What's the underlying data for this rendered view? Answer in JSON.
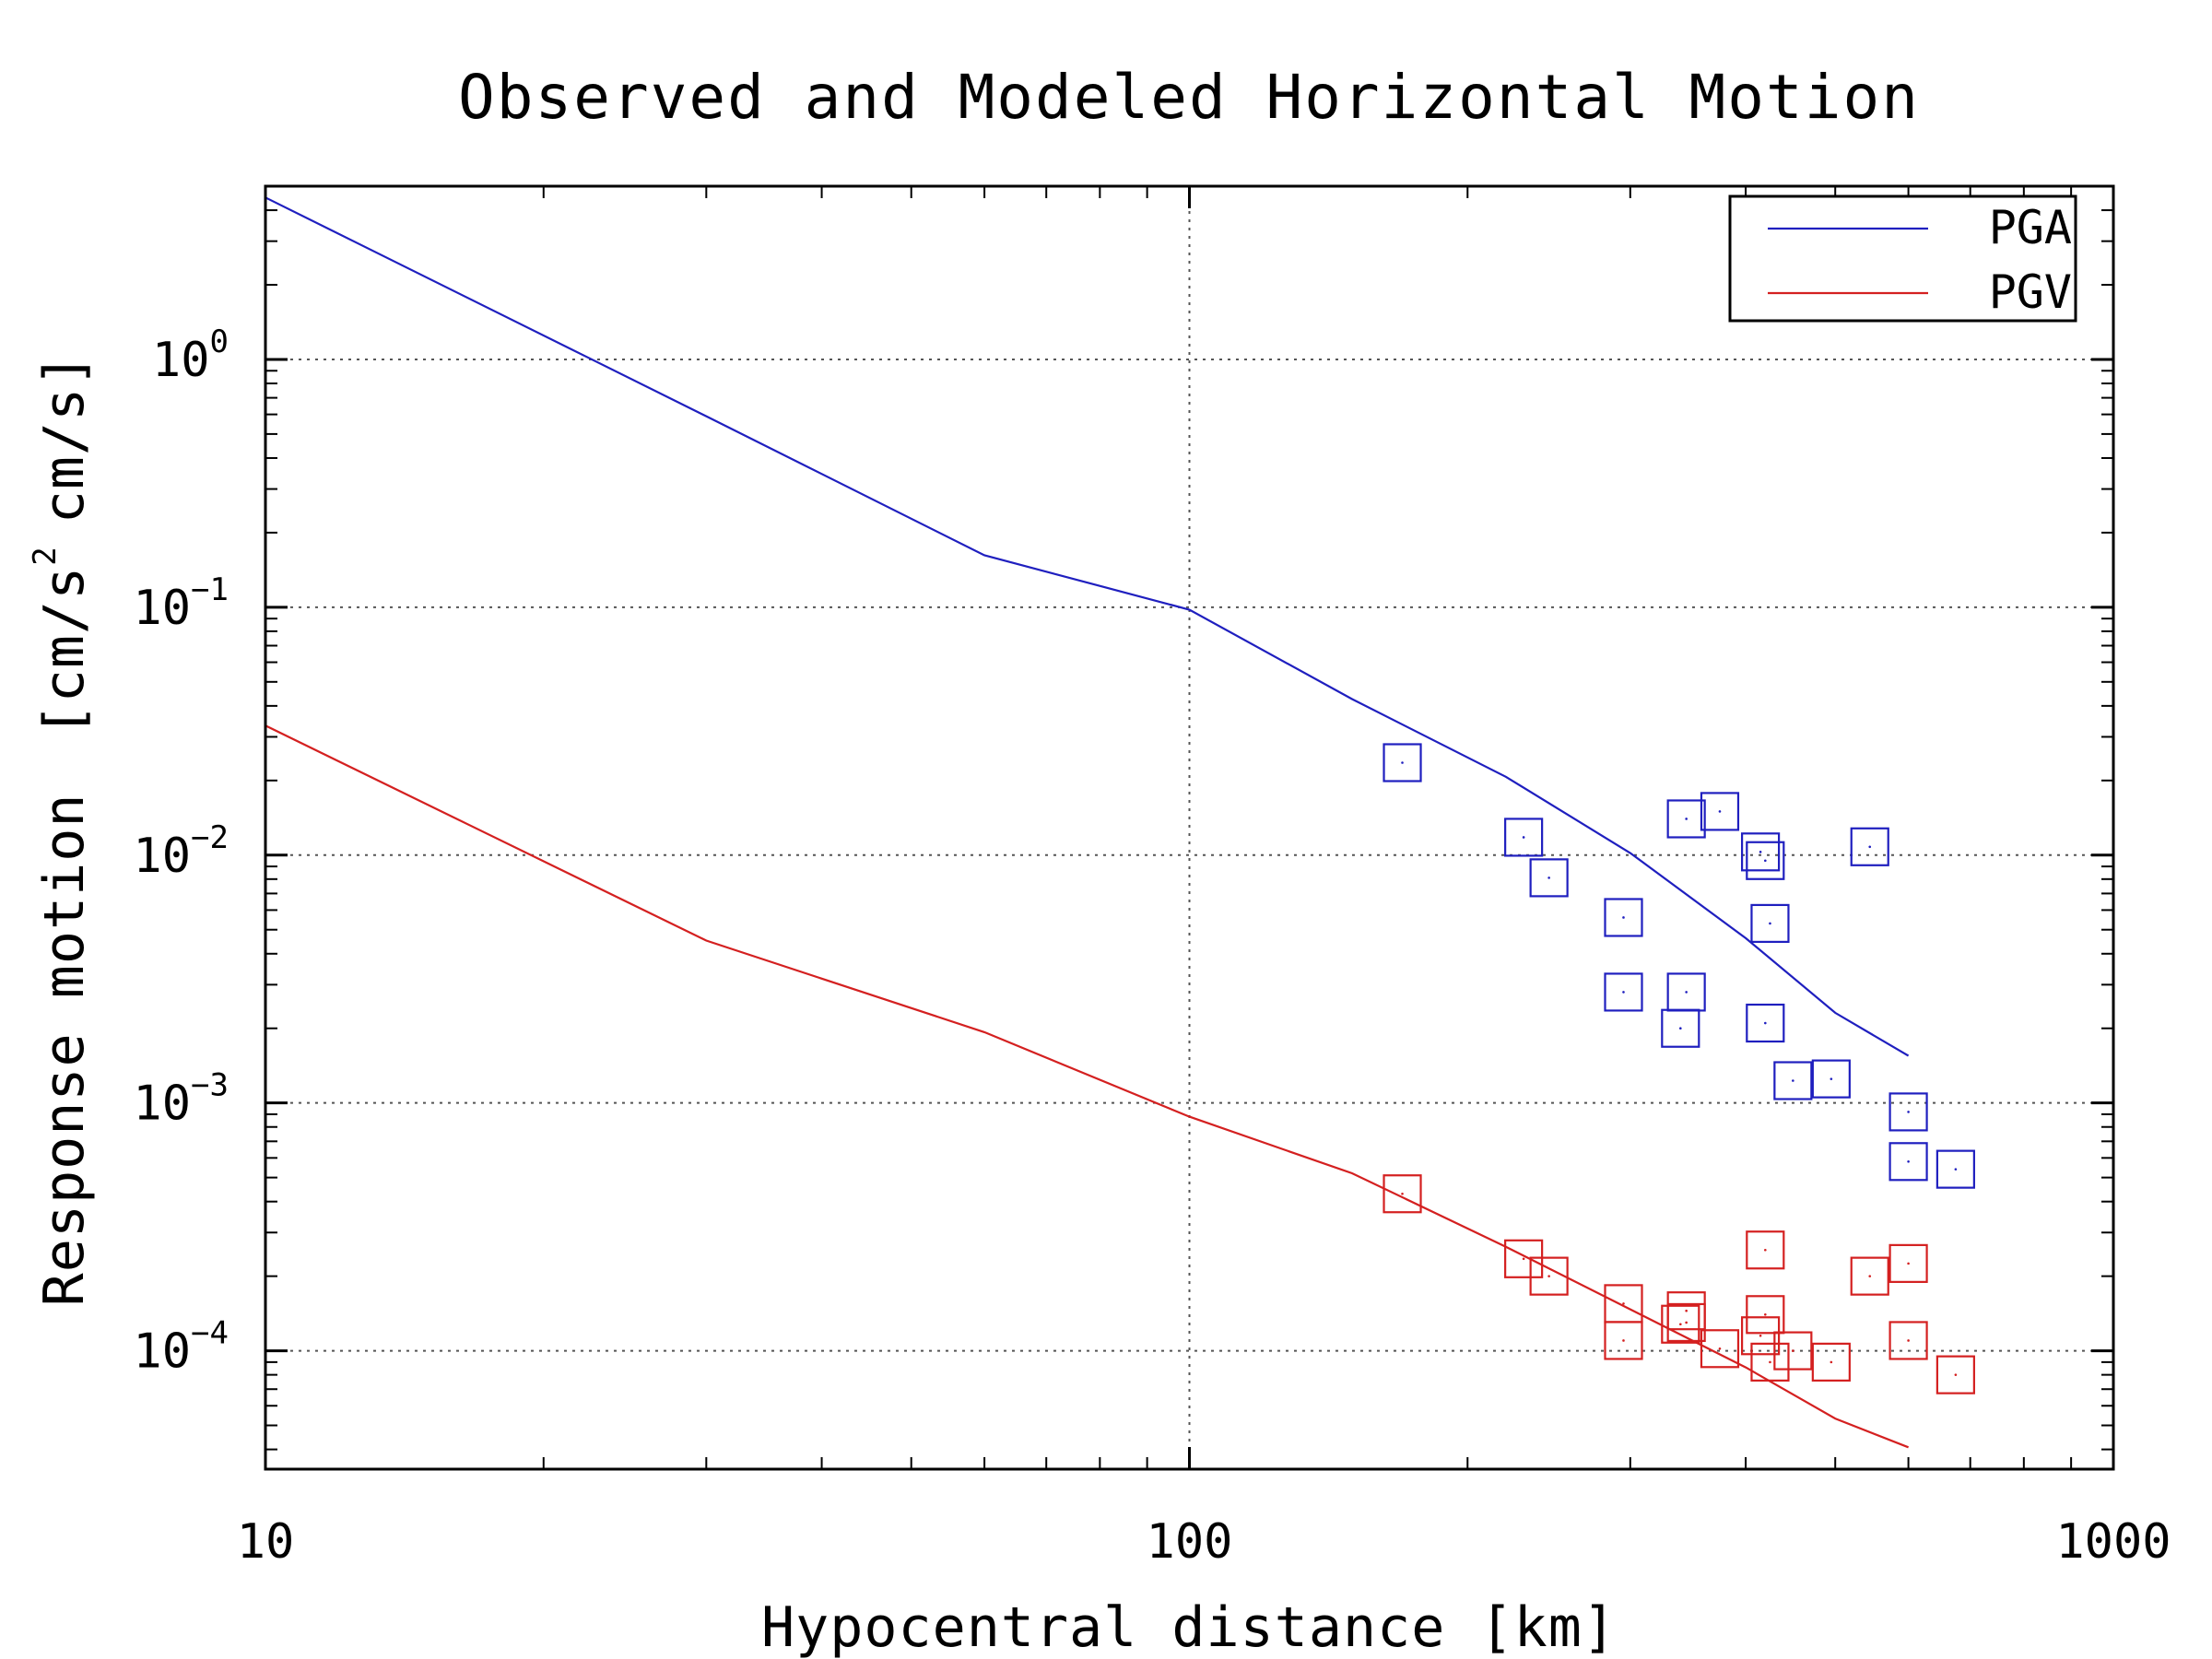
{
  "chart_data": {
    "type": "scatter",
    "title": "Observed and Modeled Horizontal Motion",
    "xlabel": "Hypocentral distance [km]",
    "ylabel": {
      "main": "Response motion",
      "unit_prefix": "[cm/s",
      "unit_superscript": "2",
      "unit_suffix": "cm/s]"
    },
    "xscale": "log",
    "yscale": "log",
    "xlim": [
      10,
      1000
    ],
    "ylim": [
      3.33e-05,
      5.0
    ],
    "xticks": [
      {
        "value": 10,
        "label": "10"
      },
      {
        "value": 100,
        "label": "100"
      },
      {
        "value": 1000,
        "label": "1000"
      }
    ],
    "yticks": [
      {
        "value": 1,
        "base": "10",
        "exp": "0"
      },
      {
        "value": 0.1,
        "base": "10",
        "exp": "−1"
      },
      {
        "value": 0.01,
        "base": "10",
        "exp": "−2"
      },
      {
        "value": 0.001,
        "base": "10",
        "exp": "−3"
      },
      {
        "value": 0.0001,
        "base": "10",
        "exp": "−4"
      }
    ],
    "grid": true,
    "legend_position": "top-right",
    "series": [
      {
        "name": "PGA",
        "color": "#1f1fbf",
        "model": {
          "x": [
            10,
            30,
            60,
            100,
            150,
            220,
            300,
            400,
            500,
            600
          ],
          "y": [
            4.5,
            0.59,
            0.162,
            0.0978,
            0.0426,
            0.0207,
            0.0102,
            0.00462,
            0.00231,
            0.00155
          ]
        },
        "observed": {
          "x": [
            170,
            230,
            245,
            295,
            295,
            340,
            345,
            345,
            375,
            415,
            420,
            420,
            425,
            450,
            495,
            545,
            600,
            600,
            675
          ],
          "y": [
            0.0236,
            0.0118,
            0.0081,
            0.0056,
            0.0028,
            0.002,
            0.0028,
            0.014,
            0.015,
            0.0103,
            0.0095,
            0.0021,
            0.0053,
            0.00123,
            0.00125,
            0.0108,
            0.00092,
            0.00058,
            0.00054
          ]
        }
      },
      {
        "name": "PGV",
        "color": "#d42020",
        "model": {
          "x": [
            10,
            30,
            60,
            100,
            150,
            220,
            300,
            400,
            500,
            600
          ],
          "y": [
            0.0333,
            0.00452,
            0.00193,
            0.00088,
            0.00052,
            0.000263,
            0.000147,
            8.57e-05,
            5.33e-05,
            4.08e-05
          ]
        },
        "observed": {
          "x": [
            170,
            230,
            245,
            295,
            295,
            340,
            345,
            345,
            375,
            415,
            420,
            420,
            425,
            450,
            495,
            545,
            600,
            600,
            675
          ],
          "y": [
            0.00043,
            0.000235,
            0.0002,
            0.000155,
            0.00011,
            0.000128,
            0.000145,
            0.00013,
            0.000102,
            0.000115,
            0.000255,
            0.00014,
            9e-05,
            0.0001,
            9e-05,
            0.0002,
            0.000225,
            0.00011,
            8e-05
          ]
        }
      }
    ]
  }
}
